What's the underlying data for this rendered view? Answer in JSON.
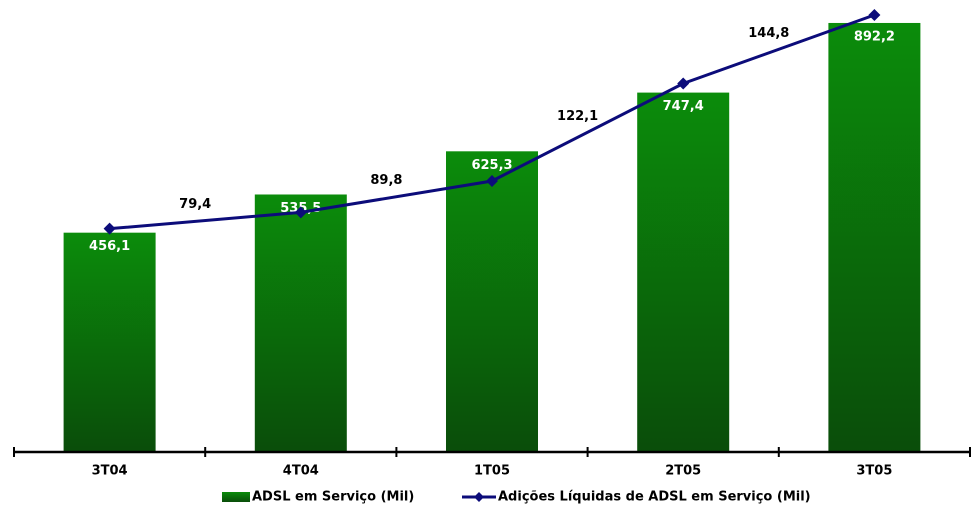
{
  "chart_data": {
    "type": "bar-line",
    "categories": [
      "3T04",
      "4T04",
      "1T05",
      "2T05",
      "3T05"
    ],
    "series": [
      {
        "name": "ADSL em Serviço (Mil)",
        "type": "bar",
        "color": "#0a7a0a",
        "values": [
          456.1,
          535.5,
          625.3,
          747.4,
          892.2
        ],
        "value_labels": [
          "456,1",
          "535,5",
          "625,3",
          "747,4",
          "892,2"
        ]
      },
      {
        "name": "Adições Líquidas de ADSL em Serviço (Mil)",
        "type": "line",
        "axis": "y2",
        "color": "#0c0c7a",
        "values": [
          74,
          79.4,
          89.8,
          122.1,
          144.8
        ],
        "value_labels": [
          null,
          "79,4",
          "89,8",
          "122,1",
          "144,8"
        ]
      }
    ],
    "ylim": [
      0,
      915
    ],
    "y2lim": [
      0,
      145.8
    ],
    "legend": "bottom"
  }
}
